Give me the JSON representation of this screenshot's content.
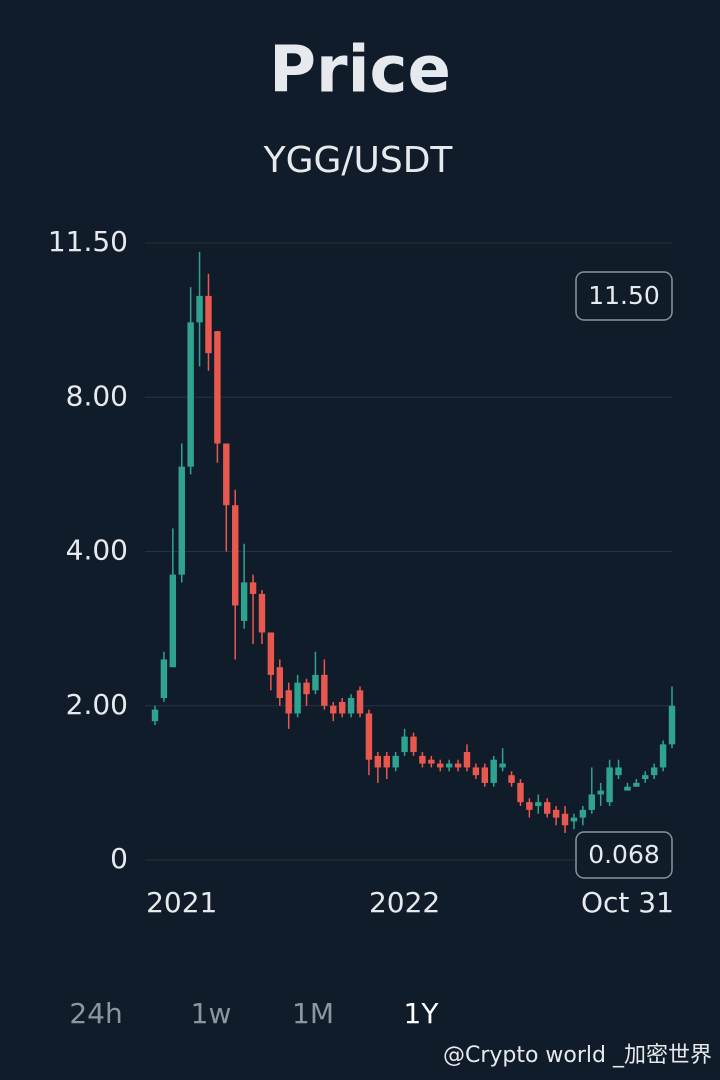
{
  "chart_data": {
    "type": "candlestick",
    "title": "Price",
    "subtitle": "YGG/USDT",
    "categories": [
      null,
      null,
      null,
      "2021",
      null,
      null,
      null,
      null,
      null,
      null,
      null,
      null,
      null,
      null,
      null,
      null,
      null,
      null,
      null,
      null,
      null,
      null,
      null,
      null,
      null,
      null,
      null,
      null,
      "2022",
      null,
      null,
      null,
      null,
      null,
      null,
      null,
      null,
      null,
      null,
      null,
      null,
      null,
      null,
      null,
      null,
      null,
      null,
      null,
      null,
      null,
      null,
      null,
      null,
      "Oct 31",
      null,
      null,
      null,
      null,
      null
    ],
    "open": [
      1.8,
      2.1,
      2.5,
      3.7,
      6.2,
      9.7,
      10.3,
      9.5,
      6.8,
      5.2,
      3.1,
      3.6,
      3.45,
      2.95,
      2.5,
      2.2,
      1.9,
      2.3,
      2.2,
      2.4,
      2.0,
      2.05,
      1.9,
      2.2,
      1.9,
      1.35,
      1.35,
      1.2,
      1.4,
      1.6,
      1.35,
      1.3,
      1.25,
      1.2,
      1.25,
      1.4,
      1.2,
      1.2,
      1.0,
      1.2,
      1.1,
      1.0,
      0.75,
      0.7,
      0.75,
      0.65,
      0.6,
      0.5,
      0.55,
      0.65,
      0.85,
      0.75,
      1.1,
      0.9,
      0.95,
      1.05,
      1.1,
      1.2,
      1.5
    ],
    "close": [
      1.95,
      2.6,
      3.7,
      6.2,
      9.7,
      10.3,
      9.0,
      6.8,
      5.2,
      3.3,
      3.6,
      3.45,
      2.95,
      2.4,
      2.1,
      1.9,
      2.3,
      2.15,
      2.4,
      2.0,
      1.9,
      1.9,
      2.1,
      1.9,
      1.3,
      1.2,
      1.2,
      1.35,
      1.6,
      1.4,
      1.25,
      1.25,
      1.2,
      1.25,
      1.2,
      1.2,
      1.1,
      1.0,
      1.3,
      1.25,
      1.0,
      0.75,
      0.65,
      0.75,
      0.6,
      0.55,
      0.45,
      0.55,
      0.65,
      0.85,
      0.9,
      1.2,
      1.2,
      0.95,
      1.0,
      1.1,
      1.2,
      1.5,
      2.0
    ],
    "high": [
      2.0,
      2.7,
      4.6,
      6.8,
      10.5,
      11.3,
      10.8,
      9.5,
      6.8,
      5.6,
      4.2,
      3.7,
      3.5,
      2.95,
      2.6,
      2.3,
      2.4,
      2.35,
      2.7,
      2.6,
      2.05,
      2.1,
      2.15,
      2.25,
      1.95,
      1.4,
      1.4,
      1.4,
      1.7,
      1.65,
      1.4,
      1.35,
      1.3,
      1.3,
      1.3,
      1.5,
      1.25,
      1.25,
      1.35,
      1.45,
      1.15,
      1.05,
      0.8,
      0.85,
      0.8,
      0.7,
      0.7,
      0.6,
      0.7,
      1.2,
      1.0,
      1.3,
      1.3,
      1.0,
      1.05,
      1.15,
      1.25,
      1.55,
      2.25
    ],
    "low": [
      1.75,
      2.05,
      2.5,
      3.6,
      6.0,
      8.7,
      8.6,
      6.3,
      4.0,
      2.6,
      3.0,
      2.8,
      2.8,
      2.2,
      2.0,
      1.7,
      1.85,
      2.0,
      2.15,
      1.95,
      1.8,
      1.85,
      1.85,
      1.85,
      1.1,
      1.0,
      1.05,
      1.15,
      1.35,
      1.35,
      1.2,
      1.2,
      1.15,
      1.15,
      1.15,
      1.15,
      1.05,
      0.95,
      0.95,
      1.15,
      0.95,
      0.7,
      0.55,
      0.6,
      0.55,
      0.45,
      0.35,
      0.4,
      0.45,
      0.6,
      0.7,
      0.7,
      1.05,
      0.9,
      0.95,
      1.0,
      1.05,
      1.15,
      1.45
    ],
    "up_color": "#2fa38f",
    "down_color": "#e9584f",
    "ylim": [
      0,
      11.5
    ],
    "yticks": [
      0,
      {
        "value": 2,
        "label": "2.00"
      },
      {
        "value": 4,
        "label": "4.00"
      },
      {
        "value": 8,
        "label": "8.00"
      },
      {
        "value": 11.5,
        "label": "11.50"
      }
    ],
    "grid": true,
    "annotations": [
      "11.50",
      "0.068"
    ]
  },
  "range_buttons": [
    "24h",
    "1w",
    "1M",
    "1Y"
  ],
  "watermark": "@Crypto world _加密世界"
}
